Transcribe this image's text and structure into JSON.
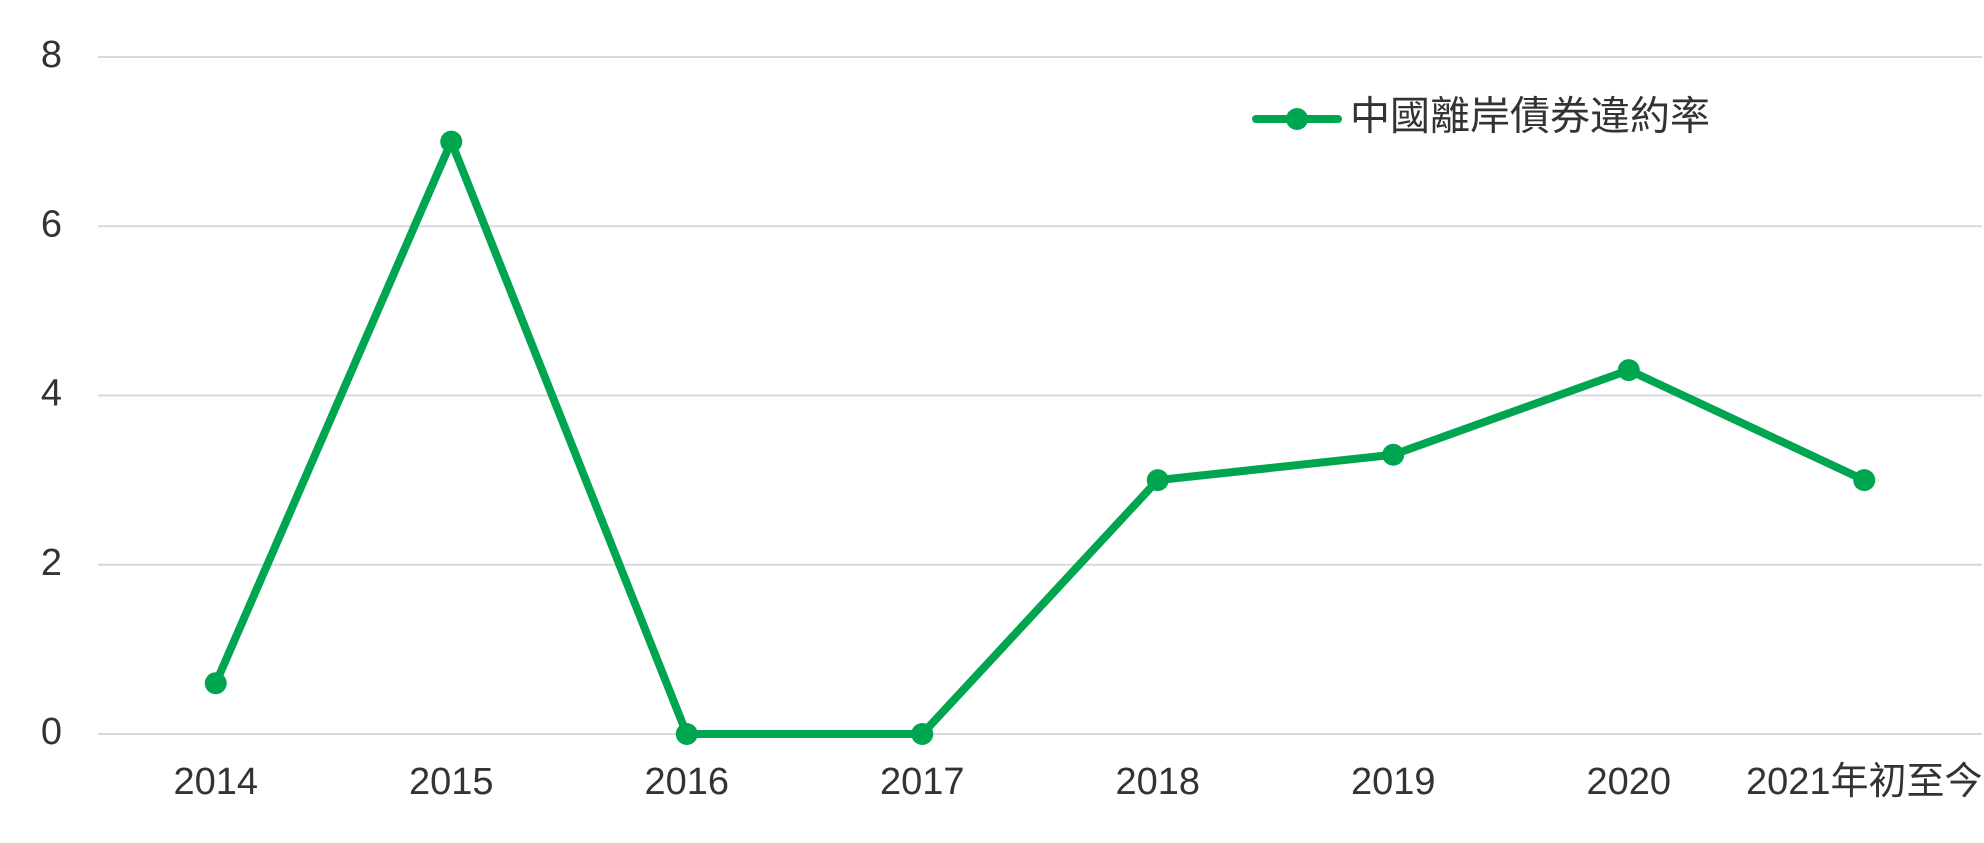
{
  "chart_data": {
    "type": "line",
    "categories": [
      "2014",
      "2015",
      "2016",
      "2017",
      "2018",
      "2019",
      "2020",
      "2021年初至今"
    ],
    "series": [
      {
        "name": "中國離岸債券違約率",
        "color": "#00a550",
        "values": [
          0.6,
          7,
          0,
          0,
          3,
          3.3,
          4.3,
          3
        ]
      }
    ],
    "ylim": [
      0,
      8
    ],
    "yticks": [
      0,
      2,
      4,
      6,
      8
    ],
    "grid": true,
    "legend": "top-right"
  }
}
